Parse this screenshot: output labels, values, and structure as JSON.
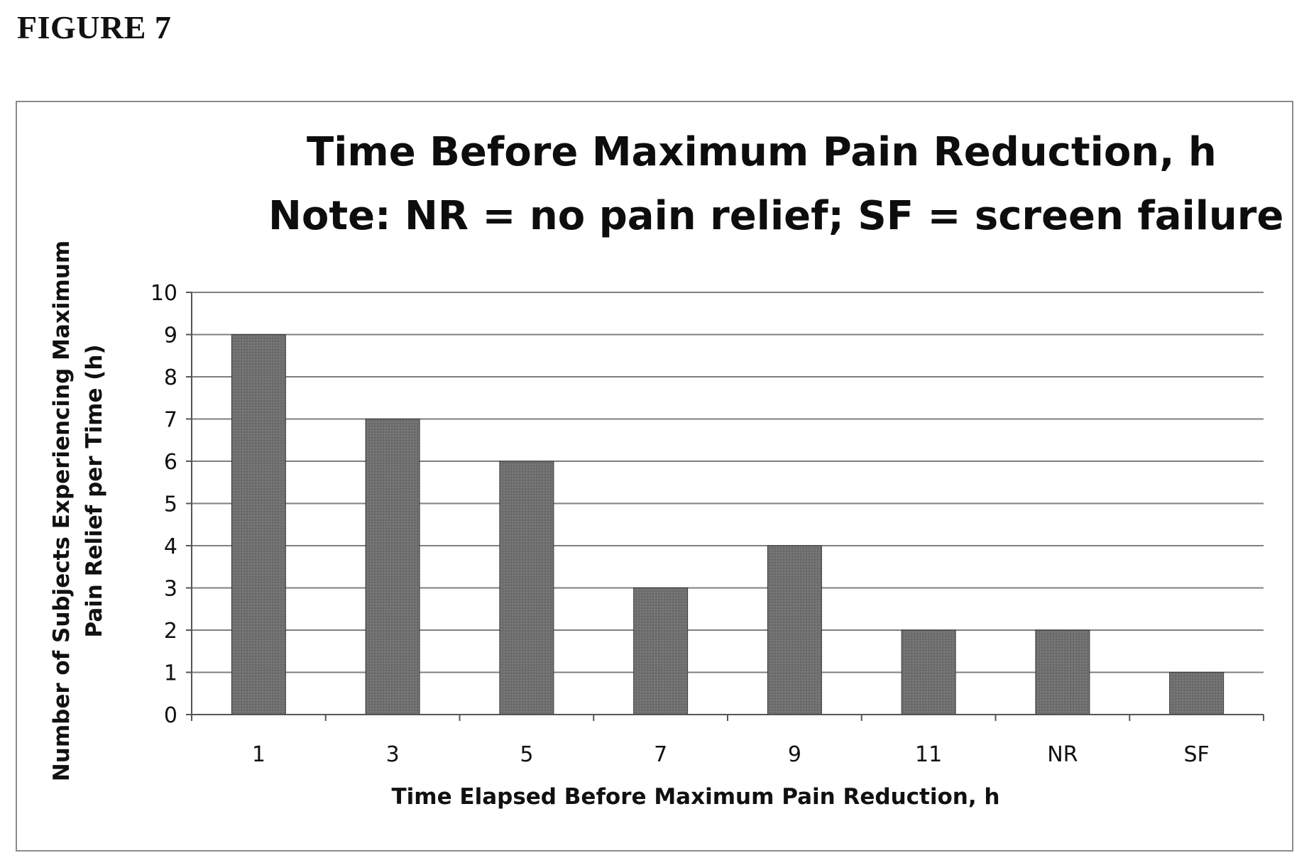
{
  "figure_label": "FIGURE 7",
  "chart_data": {
    "type": "bar",
    "title": "Time Before Maximum Pain Reduction, h",
    "subtitle": "Note:  NR = no pain relief; SF = screen failure",
    "xlabel": "Time Elapsed Before Maximum Pain Reduction, h",
    "ylabel_lines": [
      "Number of Subjects Experiencing Maximum",
      "Pain Relief per Time (h)"
    ],
    "categories": [
      "1",
      "3",
      "5",
      "7",
      "9",
      "11",
      "NR",
      "SF"
    ],
    "values": [
      9,
      7,
      6,
      3,
      4,
      2,
      2,
      1
    ],
    "ylim": [
      0,
      10
    ],
    "yticks": [
      "0",
      "1",
      "2",
      "3",
      "4",
      "5",
      "6",
      "7",
      "8",
      "9",
      "10"
    ],
    "grid": true,
    "legend": "none",
    "colors": {
      "bar": "#6e6e6e",
      "bar_stroke": "#3a3a3a",
      "grid": "#7f7f7f",
      "axis": "#555555",
      "frame": "#8a8a8a"
    }
  }
}
